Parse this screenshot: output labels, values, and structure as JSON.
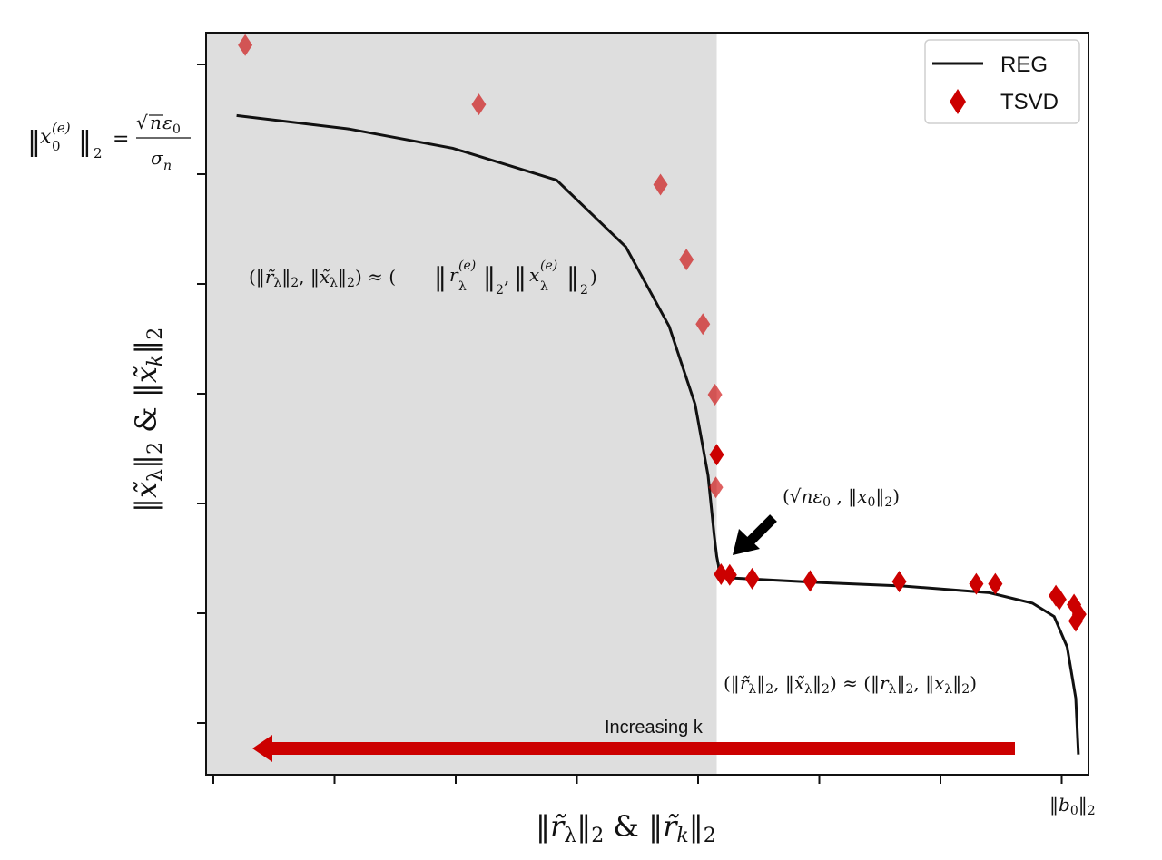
{
  "chart_data": {
    "type": "scatter",
    "xlabel": "‖r̃λ‖2 & ‖r̃k‖2",
    "ylabel": "‖x̃λ‖2 & ‖x̃k‖2",
    "xlim": [
      0,
      1.0
    ],
    "ylim": [
      0,
      1.0
    ],
    "grid": false,
    "x_tick_count": 8,
    "y_tick_count": 7,
    "x_end_tick_label": "‖b0‖2",
    "y_annotation": "‖x0(e)‖2 = √n ε0 / σn",
    "shaded_region": {
      "x_from": 0.0,
      "x_to": 0.585,
      "color": "#dedede"
    },
    "legend": {
      "placement": "top-right",
      "entries": [
        {
          "label": "REG",
          "marker": "line",
          "color": "#111111"
        },
        {
          "label": "TSVD",
          "marker": "diamond",
          "color": "#cc0000"
        }
      ]
    },
    "series": [
      {
        "name": "REG",
        "kind": "line",
        "x": [
          0.03,
          0.16,
          0.28,
          0.4,
          0.48,
          0.53,
          0.56,
          0.575,
          0.582,
          0.585,
          0.587,
          0.588,
          0.6,
          0.7,
          0.8,
          0.9,
          0.95,
          0.975,
          0.99,
          1.0,
          1.003
        ],
        "y": [
          0.887,
          0.869,
          0.843,
          0.8,
          0.71,
          0.603,
          0.498,
          0.402,
          0.323,
          0.293,
          0.281,
          0.269,
          0.264,
          0.258,
          0.253,
          0.244,
          0.23,
          0.212,
          0.171,
          0.102,
          0.026
        ]
      },
      {
        "name": "TSVD",
        "kind": "scatter",
        "x": [
          0.04,
          0.31,
          0.52,
          0.55,
          0.569,
          0.583,
          0.585,
          0.584,
          0.59,
          0.6,
          0.626,
          0.693,
          0.796,
          0.885,
          0.907,
          0.977,
          0.981,
          0.998,
          1.004,
          1.0
        ],
        "y": [
          0.982,
          0.902,
          0.794,
          0.693,
          0.606,
          0.511,
          0.43,
          0.386,
          0.269,
          0.268,
          0.263,
          0.26,
          0.259,
          0.256,
          0.256,
          0.24,
          0.235,
          0.228,
          0.215,
          0.206
        ]
      }
    ],
    "annotations": [
      {
        "text": "(‖r̃λ‖2, ‖x̃λ‖2) ≈ (‖rλ(e)‖2, ‖xλ(e)‖2)",
        "region": "upper-left inside shaded area"
      },
      {
        "text": "(√n ε0 , ‖x0‖2)",
        "region": "corner point",
        "arrow": true
      },
      {
        "text": "(‖r̃λ‖2, ‖x̃λ‖2) ≈ (‖rλ‖2, ‖xλ‖2)",
        "region": "lower-right"
      },
      {
        "text": "Increasing k",
        "region": "bottom",
        "arrow_direction": "left",
        "arrow_color": "#cc0000"
      }
    ]
  }
}
